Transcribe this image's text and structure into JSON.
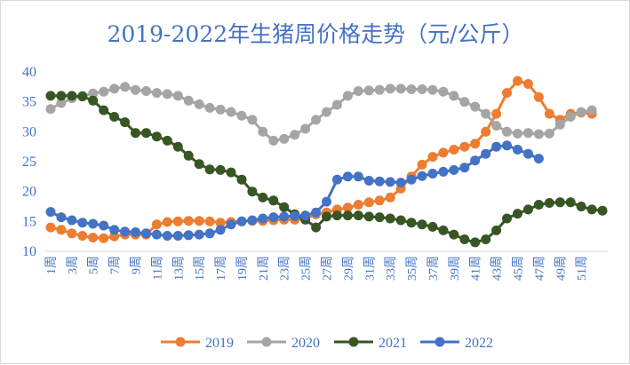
{
  "chart_data": {
    "type": "line",
    "title": "2019-2022年生猪周价格走势（元/公斤）",
    "xlabel": "",
    "ylabel": "",
    "ylim": [
      10,
      40
    ],
    "yticks": [
      10,
      15,
      20,
      25,
      30,
      35,
      40
    ],
    "x_tick_labels": [
      "1周",
      "3周",
      "5周",
      "7周",
      "9周",
      "11周",
      "13周",
      "15周",
      "17周",
      "19周",
      "21周",
      "23周",
      "25周",
      "27周",
      "29周",
      "31周",
      "33周",
      "35周",
      "37周",
      "39周",
      "41周",
      "43周",
      "45周",
      "47周",
      "49周",
      "51周"
    ],
    "grid": false,
    "legend_position": "bottom",
    "series": [
      {
        "name": "2019",
        "color": "#ed7d31",
        "values": [
          14.0,
          13.6,
          13.0,
          12.6,
          12.3,
          12.2,
          12.5,
          12.8,
          12.8,
          12.8,
          14.5,
          14.9,
          15.0,
          15.1,
          15.1,
          15.0,
          14.8,
          14.9,
          15.0,
          15.1,
          15.1,
          15.2,
          15.3,
          15.3,
          15.4,
          16.2,
          16.5,
          17.0,
          17.3,
          17.8,
          18.2,
          18.5,
          19.0,
          20.5,
          22.5,
          24.5,
          25.8,
          26.5,
          27.0,
          27.5,
          28.0,
          30.0,
          33.0,
          36.5,
          38.5,
          38.0,
          35.8,
          33.0,
          32.0,
          33.0,
          33.2,
          33.0
        ]
      },
      {
        "name": "2020",
        "color": "#a5a5a5",
        "values": [
          33.8,
          34.8,
          35.6,
          36.0,
          36.4,
          36.7,
          37.2,
          37.5,
          37.0,
          36.8,
          36.5,
          36.3,
          36.0,
          35.2,
          34.6,
          34.0,
          33.7,
          33.3,
          32.7,
          32.0,
          30.0,
          28.5,
          28.8,
          29.5,
          30.5,
          32.0,
          33.3,
          34.5,
          36.0,
          36.8,
          36.9,
          37.0,
          37.2,
          37.2,
          37.1,
          37.1,
          37.0,
          36.7,
          36.0,
          35.0,
          34.2,
          33.0,
          31.0,
          30.0,
          29.7,
          29.8,
          29.6,
          29.7,
          31.2,
          32.5,
          33.3,
          33.6
        ]
      },
      {
        "name": "2021",
        "color": "#375623",
        "values": [
          36.0,
          36.0,
          36.0,
          35.9,
          35.2,
          33.6,
          32.5,
          31.6,
          29.8,
          29.8,
          29.2,
          28.5,
          27.5,
          26.0,
          24.6,
          23.7,
          23.6,
          23.2,
          22.0,
          20.0,
          19.0,
          18.5,
          17.4,
          16.2,
          15.3,
          14.0,
          15.8,
          16.0,
          16.0,
          16.0,
          15.8,
          15.7,
          15.5,
          15.2,
          14.8,
          14.5,
          14.1,
          13.5,
          12.8,
          12.0,
          11.5,
          12.0,
          13.5,
          15.5,
          16.3,
          17.0,
          17.8,
          18.1,
          18.2,
          18.2,
          17.5,
          17.0,
          16.8
        ]
      },
      {
        "name": "2022",
        "color": "#4472c4",
        "values": [
          16.6,
          15.7,
          15.2,
          14.8,
          14.6,
          14.3,
          13.6,
          13.3,
          13.2,
          13.0,
          12.8,
          12.6,
          12.6,
          12.7,
          12.8,
          13.0,
          13.6,
          14.5,
          15.0,
          15.2,
          15.5,
          15.7,
          15.8,
          15.9,
          16.0,
          16.5,
          18.3,
          22.0,
          22.5,
          22.5,
          21.8,
          21.7,
          21.6,
          21.5,
          22.0,
          22.6,
          23.0,
          23.3,
          23.6,
          24.0,
          25.2,
          26.3,
          27.5,
          27.7,
          27.0,
          26.3,
          25.5
        ]
      }
    ]
  }
}
